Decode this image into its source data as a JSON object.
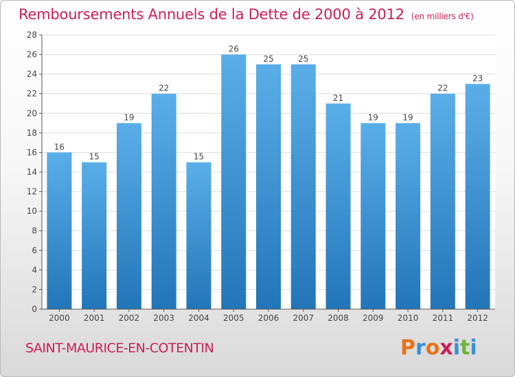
{
  "chart_data": {
    "type": "bar",
    "title": "Remboursements Annuels de la Dette de 2000 à 2012",
    "unit_note": "(en milliers d'€)",
    "categories": [
      "2000",
      "2001",
      "2002",
      "2003",
      "2004",
      "2005",
      "2006",
      "2007",
      "2008",
      "2009",
      "2010",
      "2011",
      "2012"
    ],
    "values": [
      16,
      15,
      19,
      22,
      15,
      26,
      25,
      25,
      21,
      19,
      19,
      22,
      23
    ],
    "data_labels": [
      "16",
      "15",
      "19",
      "22",
      "15",
      "26",
      "25",
      "25",
      "21",
      "19",
      "19",
      "22",
      "23"
    ],
    "ylim": [
      0,
      28
    ],
    "yticks": [
      "0",
      "2",
      "4",
      "6",
      "8",
      "10",
      "12",
      "14",
      "16",
      "18",
      "20",
      "22",
      "24",
      "26",
      "28"
    ],
    "grid": true,
    "bar_color_top": "#5aaee8",
    "bar_color_bottom": "#2276b8",
    "xlabel": "",
    "ylabel": ""
  },
  "location": "SAINT-MAURICE-EN-COTENTIN",
  "logo": {
    "text": "Proxiti",
    "colors": [
      "#e8731a",
      "#3a8fd6",
      "#e8731a",
      "#c81e5a",
      "#3a8fd6",
      "#6db33f",
      "#3a8fd6"
    ]
  },
  "colors": {
    "accent": "#c81e5a",
    "grid": "#dcdcdc",
    "axis": "#555555"
  }
}
